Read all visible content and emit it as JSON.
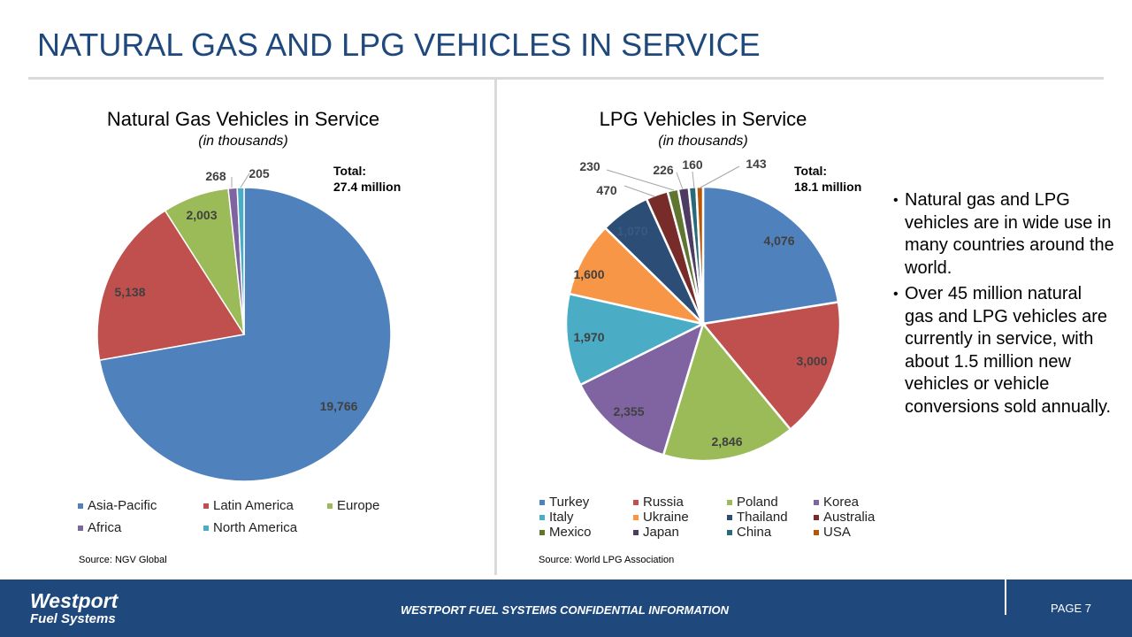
{
  "slide": {
    "title": "NATURAL GAS AND LPG VEHICLES IN SERVICE"
  },
  "bullets": [
    "Natural gas and LPG vehicles are in wide use in many countries around the world.",
    "Over 45 million natural gas and LPG vehicles are currently in service, with about 1.5 million new vehicles or vehicle conversions sold annually."
  ],
  "footer": {
    "logo_line1": "Westport",
    "logo_line2": "Fuel Systems",
    "confidential": "WESTPORT FUEL SYSTEMS CONFIDENTIAL INFORMATION",
    "page": "PAGE 7"
  },
  "chart_data": [
    {
      "type": "pie",
      "title": "Natural Gas Vehicles in Service",
      "subtitle": "(in thousands)",
      "total_label": "Total:",
      "total_value": "27.4 million",
      "source": "Source: NGV Global",
      "legend_position": "bottom",
      "categories": [
        "Asia-Pacific",
        "Latin America",
        "Europe",
        "Africa",
        "North America"
      ],
      "values": [
        19766,
        5138,
        2003,
        268,
        205
      ],
      "labels": [
        "19,766",
        "5,138",
        "2,003",
        "268",
        "205"
      ],
      "colors": [
        "#4F81BD",
        "#C0504D",
        "#9BBB59",
        "#8064A2",
        "#4BACC6"
      ]
    },
    {
      "type": "pie",
      "title": "LPG Vehicles in Service",
      "subtitle": "(in thousands)",
      "total_label": "Total:",
      "total_value": "18.1 million",
      "source": "Source: World LPG Association",
      "legend_position": "bottom",
      "categories": [
        "Turkey",
        "Russia",
        "Poland",
        "Korea",
        "Italy",
        "Ukraine",
        "Thailand",
        "Australia",
        "Mexico",
        "Japan",
        "China",
        "USA"
      ],
      "values": [
        4076,
        3000,
        2846,
        2355,
        1970,
        1600,
        1070,
        470,
        230,
        226,
        160,
        143
      ],
      "labels": [
        "4,076",
        "3,000",
        "2,846",
        "2,355",
        "1,970",
        "1,600",
        "1,070",
        "470",
        "230",
        "226",
        "160",
        "143"
      ],
      "colors": [
        "#4F81BD",
        "#C0504D",
        "#9BBB59",
        "#8064A2",
        "#4BACC6",
        "#F79646",
        "#2C4D75",
        "#772C2A",
        "#5F7530",
        "#4D3B62",
        "#276A7C",
        "#B65708"
      ]
    }
  ]
}
